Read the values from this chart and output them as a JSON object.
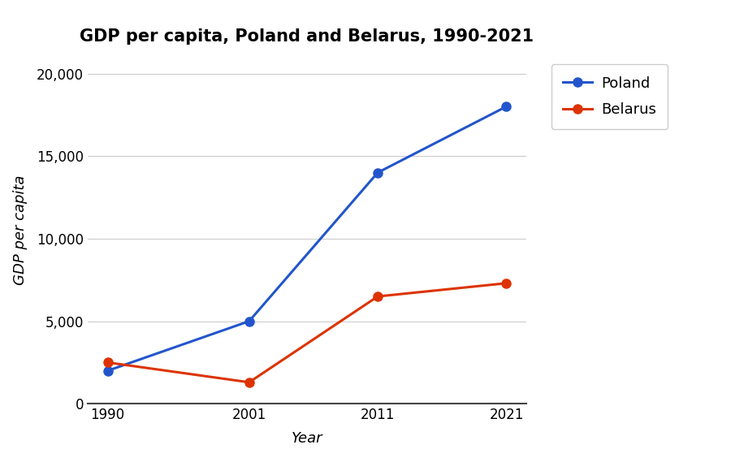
{
  "title": "GDP per capita, Poland and Belarus, 1990-2021",
  "xlabel": "Year",
  "ylabel": "GDP per capita",
  "years": [
    1990,
    2001,
    2011,
    2021
  ],
  "poland": [
    2000,
    5000,
    14000,
    18000
  ],
  "belarus": [
    2500,
    1300,
    6500,
    7300
  ],
  "poland_color": "#2255cc",
  "belarus_color": "#dd3300",
  "ylim": [
    0,
    21000
  ],
  "yticks": [
    0,
    5000,
    10000,
    15000,
    20000
  ],
  "background_color": "#ffffff",
  "grid_color": "#cccccc",
  "legend_labels": [
    "Poland",
    "Belarus"
  ],
  "title_fontsize": 15,
  "axis_label_fontsize": 13,
  "tick_fontsize": 12,
  "legend_fontsize": 13,
  "marker_size": 8,
  "line_width": 2.2
}
